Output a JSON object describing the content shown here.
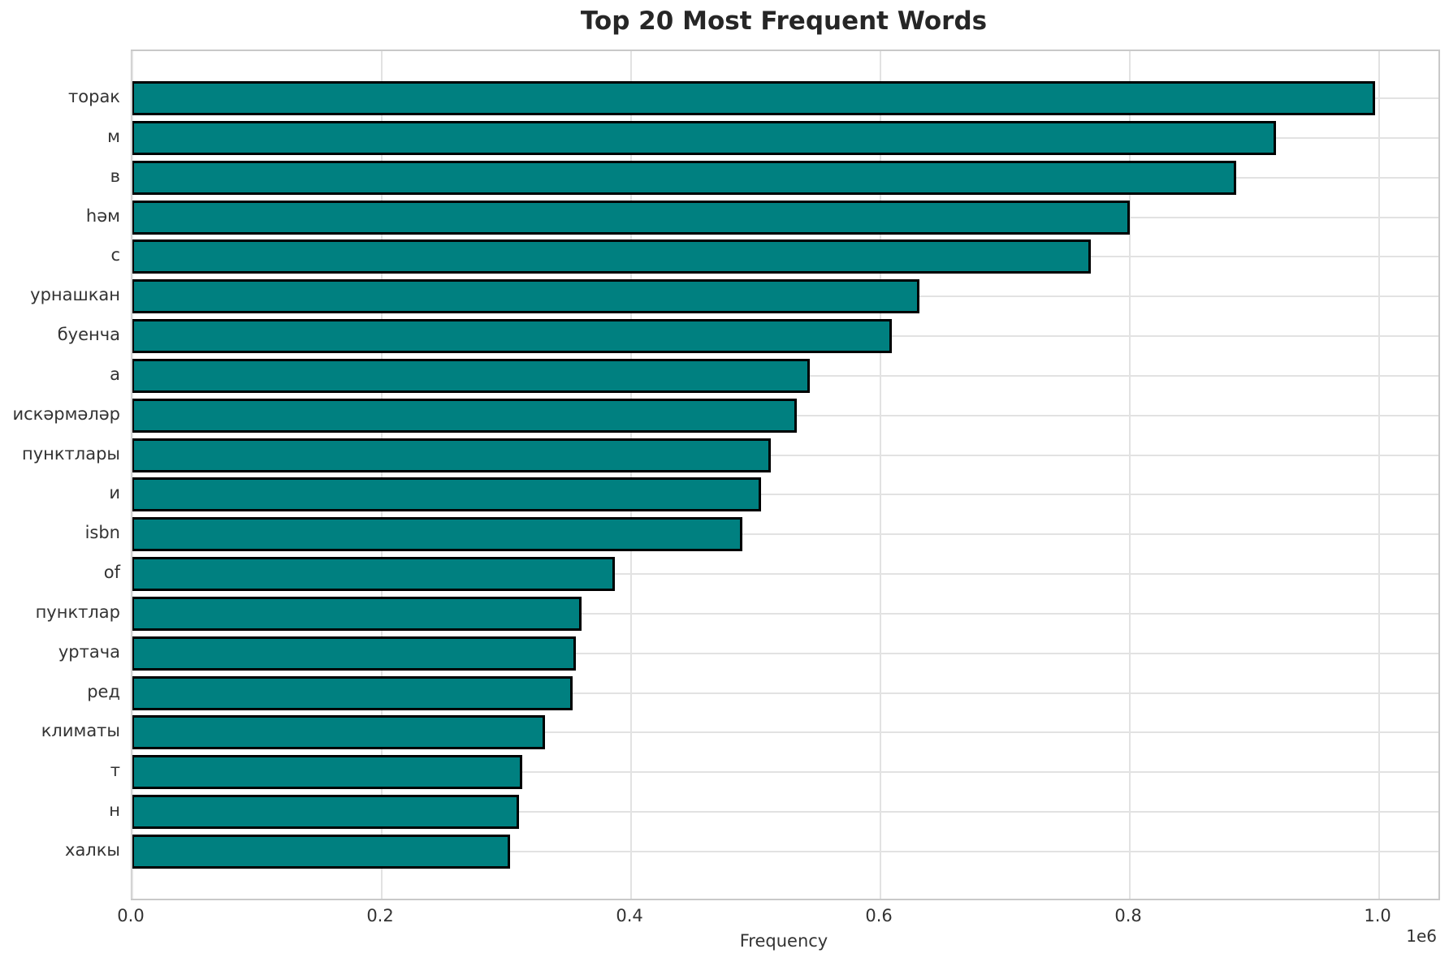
{
  "figure": {
    "title": "Top 20 Most Frequent Words",
    "xlabel": "Frequency",
    "offset_label": "1e6"
  },
  "chart_data": {
    "type": "bar",
    "orientation": "horizontal",
    "title": "Top 20 Most Frequent Words",
    "xlabel": "Frequency",
    "ylabel": "",
    "categories": [
      "торак",
      "м",
      "в",
      "һәм",
      "с",
      "урнашкан",
      "буенча",
      "а",
      "искәрмәләр",
      "пунктлары",
      "и",
      "isbn",
      "of",
      "пунктлар",
      "уртача",
      "ред",
      "климаты",
      "т",
      "н",
      "халкы"
    ],
    "values": [
      997000,
      917000,
      885000,
      800000,
      769000,
      631000,
      609000,
      543000,
      533000,
      512000,
      504000,
      489000,
      387000,
      360000,
      356000,
      353000,
      331000,
      313000,
      310000,
      303000
    ],
    "xlim": [
      0,
      1047500
    ],
    "xticks": [
      0,
      200000,
      400000,
      600000,
      800000,
      1000000
    ],
    "xtick_labels": [
      "0.0",
      "0.2",
      "0.4",
      "0.6",
      "0.8",
      "1.0"
    ],
    "x_multiplier_label": "1e6",
    "grid": true,
    "legend_position": "none",
    "bar_color": "#008080",
    "bar_edge_color": "#000000",
    "grid_color": "#e2e2e2",
    "background": "#ffffff"
  }
}
